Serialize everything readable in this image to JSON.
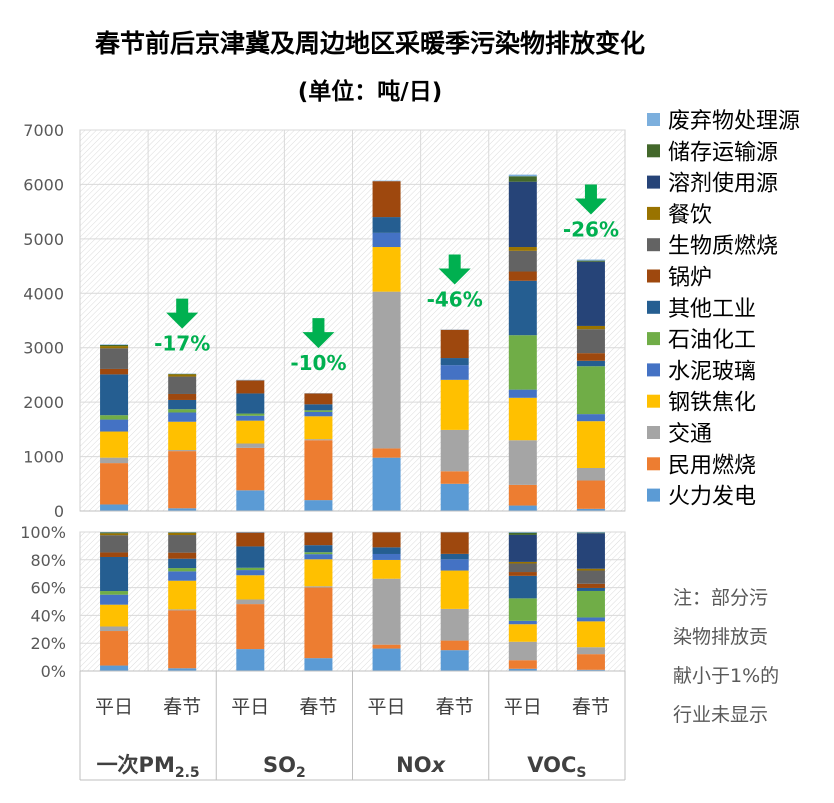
{
  "chart_data": {
    "type": "bar",
    "stacked": true,
    "title": "春节前后京津冀及周边地区采暖季污染物排放变化",
    "subtitle": "(单位：吨/日)",
    "note_lines": [
      "注：部分污",
      "染物排放贡",
      "献小于1%的",
      "行业未显示"
    ],
    "pollutants": [
      {
        "name": "一次PM",
        "subscript": "2.5",
        "italic_suffix": ""
      },
      {
        "name": "SO",
        "subscript": "2",
        "italic_suffix": ""
      },
      {
        "name": "NO",
        "subscript": "",
        "italic_suffix": "x"
      },
      {
        "name": "VOC",
        "subscript": "S",
        "italic_suffix": ""
      }
    ],
    "categories": [
      "平日",
      "春节",
      "平日",
      "春节",
      "平日",
      "春节",
      "平日",
      "春节"
    ],
    "top_axis": {
      "ylim": [
        0,
        7000
      ],
      "ticks": [
        0,
        1000,
        2000,
        3000,
        4000,
        5000,
        6000,
        7000
      ]
    },
    "bottom_axis": {
      "ylim": [
        0,
        100
      ],
      "ticks": [
        "0%",
        "20%",
        "40%",
        "60%",
        "80%",
        "100%"
      ]
    },
    "changes": [
      {
        "pollutant_index": 0,
        "label": "-17%"
      },
      {
        "pollutant_index": 1,
        "label": "-10%"
      },
      {
        "pollutant_index": 2,
        "label": "-46%"
      },
      {
        "pollutant_index": 3,
        "label": "-26%"
      }
    ],
    "series": [
      {
        "name": "火力发电",
        "color": "#5B9BD5",
        "values": [
          120,
          50,
          380,
          200,
          980,
          500,
          100,
          40
        ]
      },
      {
        "name": "民用燃烧",
        "color": "#ED7D31",
        "values": [
          760,
          1050,
          780,
          1100,
          170,
          230,
          380,
          520
        ]
      },
      {
        "name": "交通",
        "color": "#A5A5A5",
        "values": [
          100,
          20,
          80,
          20,
          2880,
          760,
          820,
          230
        ]
      },
      {
        "name": "钢铁焦化",
        "color": "#FFC000",
        "values": [
          480,
          520,
          420,
          420,
          820,
          920,
          780,
          860
        ]
      },
      {
        "name": "水泥玻璃",
        "color": "#4472C4",
        "values": [
          220,
          170,
          90,
          80,
          260,
          270,
          150,
          130
        ]
      },
      {
        "name": "石油化工",
        "color": "#70AD47",
        "values": [
          80,
          60,
          40,
          30,
          0,
          0,
          1000,
          880
        ]
      },
      {
        "name": "其他工业",
        "color": "#255E91",
        "values": [
          750,
          170,
          370,
          110,
          290,
          130,
          1000,
          100
        ]
      },
      {
        "name": "锅炉",
        "color": "#9E480E",
        "values": [
          100,
          110,
          240,
          200,
          660,
          520,
          170,
          140
        ]
      },
      {
        "name": "生物质燃烧",
        "color": "#636363",
        "values": [
          380,
          320,
          0,
          0,
          0,
          0,
          380,
          440
        ]
      },
      {
        "name": "餐饮",
        "color": "#997300",
        "values": [
          40,
          40,
          0,
          0,
          0,
          0,
          70,
          60
        ]
      },
      {
        "name": "溶剂使用源",
        "color": "#264478",
        "values": [
          0,
          0,
          0,
          0,
          0,
          0,
          1200,
          1180
        ]
      },
      {
        "name": "储存运输源",
        "color": "#43682B",
        "values": [
          20,
          10,
          0,
          0,
          0,
          0,
          100,
          20
        ]
      },
      {
        "name": "废弃物处理源",
        "color": "#7CAFDD",
        "values": [
          10,
          5,
          10,
          5,
          10,
          5,
          30,
          20
        ]
      }
    ]
  }
}
